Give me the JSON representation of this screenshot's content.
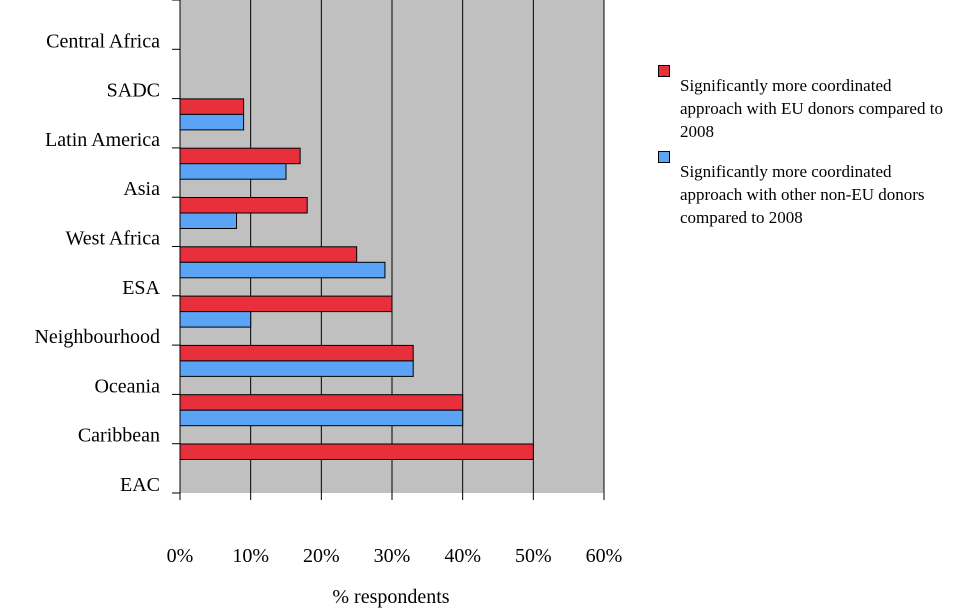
{
  "chart_data": {
    "type": "bar",
    "orientation": "horizontal",
    "categories": [
      "EAC",
      "Caribbean",
      "Oceania",
      "Neighbourhood",
      "ESA",
      "West Africa",
      "Asia",
      "Latin America",
      "SADC",
      "Central Africa"
    ],
    "series": [
      {
        "name": "Significantly more coordinated approach with EU donors compared to 2008",
        "color": "#e8303c",
        "values": [
          50,
          40,
          33,
          30,
          25,
          18,
          17,
          9,
          0,
          0
        ]
      },
      {
        "name": "Significantly more coordinated approach with other non-EU donors compared to 2008",
        "color": "#5ba4f5",
        "values": [
          0,
          40,
          33,
          10,
          29,
          8,
          15,
          9,
          0,
          0
        ]
      }
    ],
    "xlabel": "% respondents",
    "ylabel": "",
    "xlim": [
      0,
      60
    ],
    "xticks": [
      0,
      10,
      20,
      30,
      40,
      50,
      60
    ],
    "xtick_labels": [
      "0%",
      "10%",
      "20%",
      "30%",
      "40%",
      "50%",
      "60%"
    ],
    "grid": true,
    "plot_background": "#c0c0c0",
    "legend_position": "right"
  }
}
